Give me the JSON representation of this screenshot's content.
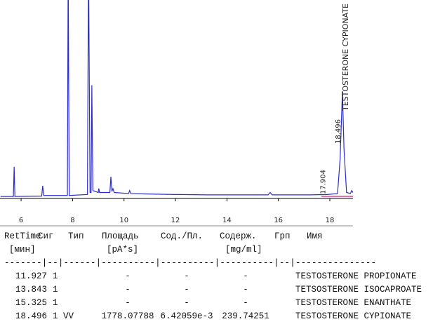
{
  "chart_data": {
    "type": "line",
    "x": [
      5.2,
      5.7,
      5.73,
      5.76,
      6.8,
      6.84,
      6.88,
      7.8,
      7.83,
      7.87,
      8.58,
      8.62,
      8.68,
      8.72,
      8.75,
      8.79,
      9.0,
      9.02,
      9.05,
      9.45,
      9.49,
      9.53,
      9.57,
      9.62,
      10.18,
      10.22,
      10.26,
      10.8,
      12,
      13.3,
      13.8,
      15.6,
      15.68,
      15.76,
      17.2,
      17.9,
      18.3,
      18.4,
      18.49,
      18.55,
      18.65,
      18.8,
      18.85,
      18.9
    ],
    "series": [
      {
        "color": "#2b2bd0",
        "values": [
          1,
          1,
          16,
          1,
          1.2,
          6.4,
          1.5,
          1.5,
          120,
          1.5,
          2,
          120,
          3,
          3,
          57,
          4,
          3,
          5,
          3,
          3,
          11,
          3.5,
          5,
          3,
          2.5,
          4,
          2.5,
          2.3,
          2,
          1.8,
          1.8,
          1.8,
          3,
          1.8,
          1.8,
          2,
          2.5,
          20,
          54,
          25,
          3,
          2.5,
          4,
          3
        ]
      }
    ],
    "xlim": [
      5.18,
      18.9
    ],
    "ylim": [
      0,
      100
    ],
    "xticks": [
      6,
      8,
      10,
      12,
      14,
      16,
      18
    ],
    "peak_labels": [
      {
        "value": 17.904,
        "label": "17.904"
      },
      {
        "value": 18.496,
        "label": "18.496"
      }
    ],
    "peak_name": "TESTOSTERONE CYPIONATE"
  },
  "table": {
    "headers": [
      "RetTime",
      "Сиг",
      "Тип",
      "Площадь",
      "Сод./Пл.",
      "Содерж.",
      "Грп",
      "Имя"
    ],
    "units": [
      "[мин]",
      null,
      null,
      "[pA*s]",
      null,
      "[mg/ml]",
      null,
      null
    ],
    "separator": "-------|--|------|----------|----------|----------|--|---------------",
    "rows": [
      [
        "11.927",
        "1",
        null,
        "-",
        "-",
        "-",
        null,
        "TESTOSTERONE PROPIONATE"
      ],
      [
        "13.843",
        "1",
        null,
        "-",
        "-",
        "-",
        null,
        "TETSOSTERONE ISOCAPROATE"
      ],
      [
        "15.325",
        "1",
        null,
        "-",
        "-",
        "-",
        null,
        "TESTOSTERONE ENANTHATE"
      ],
      [
        "18.496",
        "1",
        "VV",
        "1778.07788",
        "6.42059e-3",
        "239.74251",
        null,
        "TESTOSTERONE CYPIONATE"
      ]
    ]
  }
}
